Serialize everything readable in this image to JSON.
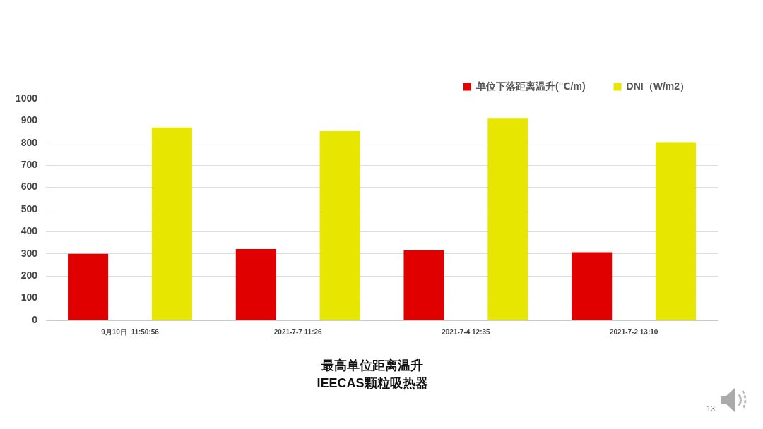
{
  "chart_data": {
    "type": "bar",
    "title": "最高单位距离温升",
    "subtitle": "IEECAS颗粒吸热器",
    "categories": [
      "9月10日  11:50:56",
      "2021-7-7 11:26",
      "2021-7-4 12:35",
      "2021-7-2 13:10"
    ],
    "series": [
      {
        "name": "单位下落距离温升(℃/m)",
        "color": "#e00000",
        "values": [
          300,
          322,
          316,
          307
        ]
      },
      {
        "name": "DNI（W/m2）",
        "color": "#e6e600",
        "values": [
          870,
          855,
          913,
          804
        ]
      }
    ],
    "ylim": [
      0,
      1000
    ],
    "yticks": [
      0,
      100,
      200,
      300,
      400,
      500,
      600,
      700,
      800,
      900,
      1000
    ],
    "grid": "y",
    "legend": "top right",
    "annotations": [
      "13"
    ]
  }
}
